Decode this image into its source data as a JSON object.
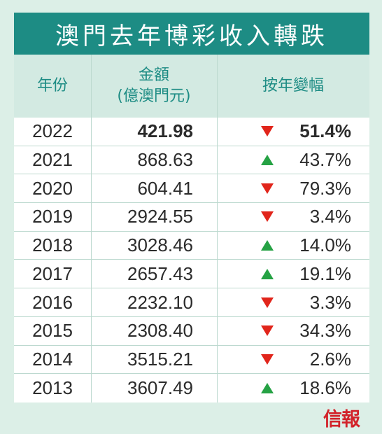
{
  "title": "澳門去年博彩收入轉跌",
  "headers": {
    "year": "年份",
    "amount_line1": "金額",
    "amount_line2": "(億澳門元)",
    "change": "按年變幅"
  },
  "colors": {
    "background": "#dcefe7",
    "title_bar": "#1d8c84",
    "header_bg": "#d3eae2",
    "header_text": "#1d8c84",
    "down": "#e1251b",
    "up": "#25a244",
    "logo": "#d2232a"
  },
  "chart_data": {
    "type": "table",
    "title": "澳門去年博彩收入轉跌",
    "columns": [
      "年份",
      "金額(億澳門元)",
      "按年變幅"
    ],
    "rows": [
      {
        "year": "2022",
        "amount": "421.98",
        "change": "51.4%",
        "direction": "down",
        "highlight": true
      },
      {
        "year": "2021",
        "amount": "868.63",
        "change": "43.7%",
        "direction": "up",
        "highlight": false
      },
      {
        "year": "2020",
        "amount": "604.41",
        "change": "79.3%",
        "direction": "down",
        "highlight": false
      },
      {
        "year": "2019",
        "amount": "2924.55",
        "change": "3.4%",
        "direction": "down",
        "highlight": false
      },
      {
        "year": "2018",
        "amount": "3028.46",
        "change": "14.0%",
        "direction": "up",
        "highlight": false
      },
      {
        "year": "2017",
        "amount": "2657.43",
        "change": "19.1%",
        "direction": "up",
        "highlight": false
      },
      {
        "year": "2016",
        "amount": "2232.10",
        "change": "3.3%",
        "direction": "down",
        "highlight": false
      },
      {
        "year": "2015",
        "amount": "2308.40",
        "change": "34.3%",
        "direction": "down",
        "highlight": false
      },
      {
        "year": "2014",
        "amount": "3515.21",
        "change": "2.6%",
        "direction": "down",
        "highlight": false
      },
      {
        "year": "2013",
        "amount": "3607.49",
        "change": "18.6%",
        "direction": "up",
        "highlight": false
      }
    ]
  },
  "logo_text": "信報"
}
